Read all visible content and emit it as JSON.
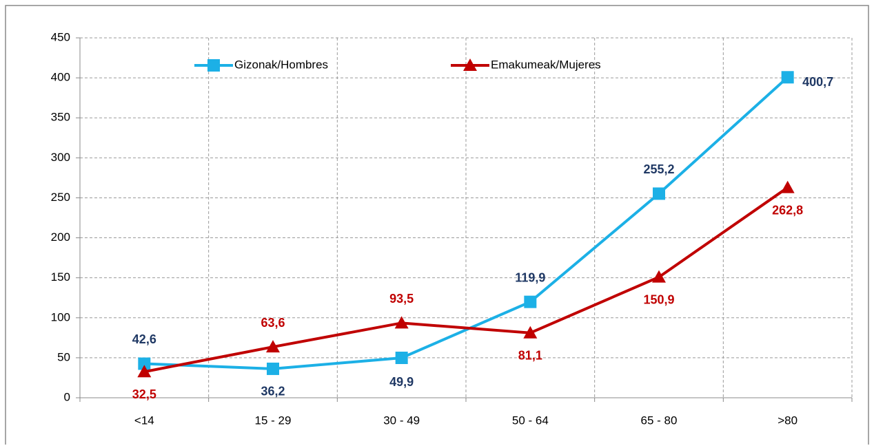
{
  "chart_data": {
    "type": "line",
    "categories": [
      "<14",
      "15 - 29",
      "30 - 49",
      "50 - 64",
      "65 - 80",
      ">80"
    ],
    "series": [
      {
        "name": "Gizonak/Hombres",
        "color": "#1cb0e6",
        "marker": "square",
        "values": [
          42.6,
          36.2,
          49.9,
          119.9,
          255.2,
          400.7
        ],
        "value_labels": [
          "42,6",
          "36,2",
          "49,9",
          "119,9",
          "255,2",
          "400,7"
        ],
        "label_color": "#1f3864"
      },
      {
        "name": "Emakumeak/Mujeres",
        "color": "#c00000",
        "marker": "triangle",
        "values": [
          32.5,
          63.6,
          93.5,
          81.1,
          150.9,
          262.8
        ],
        "value_labels": [
          "32,5",
          "63,6",
          "93,5",
          "81,1",
          "150,9",
          "262,8"
        ],
        "label_color": "#c00000"
      }
    ],
    "ylim": [
      0,
      450
    ],
    "yticks": [
      0,
      50,
      100,
      150,
      200,
      250,
      300,
      350,
      400,
      450
    ],
    "grid": true,
    "legend": "top"
  }
}
